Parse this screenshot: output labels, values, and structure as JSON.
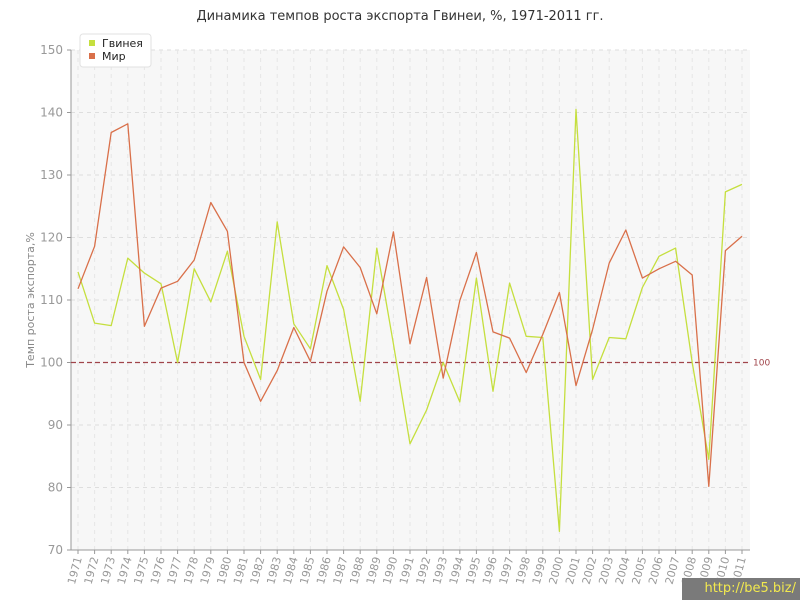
{
  "chart_data": {
    "type": "line",
    "title": "Динамика темпов роста экспорта Гвинеи, %, 1971-2011 гг.",
    "ylabel": "Темп роста экспорта,%",
    "xlabel": "",
    "ylim": [
      70,
      150
    ],
    "yticks": [
      70,
      80,
      90,
      100,
      110,
      120,
      130,
      140,
      150
    ],
    "x": [
      1971,
      1972,
      1973,
      1974,
      1975,
      1976,
      1977,
      1978,
      1979,
      1980,
      1981,
      1982,
      1983,
      1984,
      1985,
      1986,
      1987,
      1988,
      1989,
      1990,
      1991,
      1992,
      1993,
      1994,
      1995,
      1996,
      1997,
      1998,
      1999,
      2000,
      2001,
      2002,
      2003,
      2004,
      2005,
      2006,
      2007,
      2008,
      2009,
      2010,
      2011
    ],
    "series": [
      {
        "name": "Гвинея",
        "color": "#c5df3e",
        "values": [
          114.5,
          106.3,
          105.9,
          116.7,
          114.3,
          112.6,
          100.0,
          115.0,
          109.7,
          117.8,
          104.2,
          97.3,
          122.5,
          106.2,
          102.2,
          115.5,
          108.5,
          93.8,
          118.3,
          103.0,
          87.0,
          92.4,
          100.0,
          93.7,
          113.5,
          95.4,
          112.7,
          104.2,
          104.0,
          73.0,
          140.5,
          97.3,
          104.0,
          103.8,
          112.0,
          117.0,
          118.3,
          100.0,
          84.5,
          127.3,
          128.5
        ]
      },
      {
        "name": "Мир",
        "color": "#d9704a",
        "values": [
          111.8,
          118.6,
          136.8,
          138.2,
          105.8,
          111.9,
          113.0,
          116.4,
          125.6,
          121.0,
          100.0,
          93.8,
          98.7,
          105.6,
          100.2,
          111.4,
          118.5,
          115.2,
          107.8,
          120.9,
          103.0,
          113.6,
          97.5,
          109.9,
          117.6,
          104.9,
          103.9,
          98.4,
          104.5,
          111.2,
          96.3,
          105.3,
          115.9,
          121.2,
          113.5,
          115.0,
          116.2,
          114.0,
          80.2,
          117.9,
          120.2
        ]
      }
    ],
    "reference_line": {
      "value": 100,
      "label": "100",
      "color": "#a0444a"
    },
    "legend_position": "top-left",
    "grid": true
  },
  "watermark": "http://be5.biz/"
}
